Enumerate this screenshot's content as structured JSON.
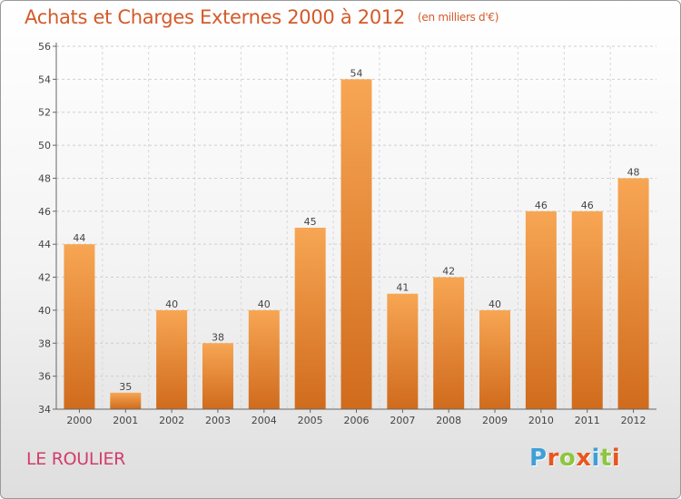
{
  "header": {
    "title": "Achats et Charges Externes 2000 à 2012",
    "unit_note": "(en milliers d'€)"
  },
  "footer": {
    "commune": "LE ROULIER",
    "logo_text": "Proxiti"
  },
  "colors": {
    "title": "#d45a2a",
    "commune": "#d23c6c",
    "bar_top": "#f7a654",
    "bar_bottom": "#d06b1c",
    "logo_letters": [
      "#3ea0d8",
      "#e8561f",
      "#8dc63f",
      "#e8561f",
      "#3ea0d8",
      "#8dc63f",
      "#e8561f"
    ]
  },
  "chart_data": {
    "type": "bar",
    "title": "Achats et Charges Externes 2000 à 2012",
    "subtitle": "(en milliers d'€)",
    "categories": [
      "2000",
      "2001",
      "2002",
      "2003",
      "2004",
      "2005",
      "2006",
      "2007",
      "2008",
      "2009",
      "2010",
      "2011",
      "2012"
    ],
    "values": [
      44,
      35,
      40,
      38,
      40,
      45,
      54,
      41,
      42,
      40,
      46,
      46,
      48
    ],
    "ylim": [
      34,
      56
    ],
    "yticks": [
      34,
      36,
      38,
      40,
      42,
      44,
      46,
      48,
      50,
      52,
      54,
      56
    ],
    "grid": true,
    "legend": "none"
  }
}
